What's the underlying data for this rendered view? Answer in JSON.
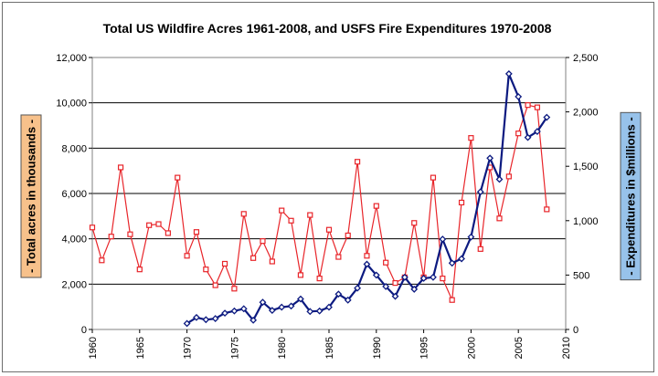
{
  "chart_data": {
    "type": "line",
    "title": "Total US Wildfire Acres 1961-2008, and USFS Fire Expenditures 1970-2008",
    "ylabel_left": "- Total acres in thousands -",
    "ylabel_right": "- Expenditures in $millions -",
    "xlim": [
      1960,
      2010
    ],
    "ylim_left": [
      0,
      12000
    ],
    "ylim_right": [
      0,
      2500
    ],
    "x_ticks": [
      "1960",
      "1965",
      "1970",
      "1975",
      "1980",
      "1985",
      "1990",
      "1995",
      "2000",
      "2005",
      "2010"
    ],
    "y_ticks_left": [
      "0",
      "2,000",
      "4,000",
      "6,000",
      "8,000",
      "10,000",
      "12,000"
    ],
    "y_ticks_right": [
      "0",
      "500",
      "1,000",
      "1,500",
      "2,000",
      "2,500"
    ],
    "grid": "horizontal",
    "colors": {
      "acres": "#e8252a",
      "expenditures": "#0c1a80",
      "left_label_box": "#f7c18b",
      "right_label_box": "#97c2ea"
    },
    "series": [
      {
        "key": "acres",
        "axis": "left",
        "marker": "square",
        "x": [
          1960,
          1961,
          1962,
          1963,
          1964,
          1965,
          1966,
          1967,
          1968,
          1969,
          1970,
          1971,
          1972,
          1973,
          1974,
          1975,
          1976,
          1977,
          1978,
          1979,
          1980,
          1981,
          1982,
          1983,
          1984,
          1985,
          1986,
          1987,
          1988,
          1989,
          1990,
          1991,
          1992,
          1993,
          1994,
          1995,
          1996,
          1997,
          1998,
          1999,
          2000,
          2001,
          2002,
          2003,
          2004,
          2005,
          2006,
          2007,
          2008
        ],
        "values": [
          4500,
          3050,
          4100,
          7150,
          4200,
          2650,
          4600,
          4650,
          4250,
          6700,
          3250,
          4300,
          2650,
          1950,
          2900,
          1800,
          5100,
          3150,
          3900,
          3000,
          5250,
          4800,
          2400,
          5050,
          2250,
          4400,
          3200,
          4150,
          7400,
          3250,
          5450,
          2950,
          2050,
          2300,
          4700,
          2300,
          6700,
          2250,
          1300,
          5600,
          8450,
          3550,
          7150,
          4900,
          6750,
          8650,
          9900,
          9800,
          5300
        ]
      },
      {
        "key": "expenditures",
        "axis": "right",
        "marker": "diamond",
        "x": [
          1970,
          1971,
          1972,
          1973,
          1974,
          1975,
          1976,
          1977,
          1978,
          1979,
          1980,
          1981,
          1982,
          1983,
          1984,
          1985,
          1986,
          1987,
          1988,
          1989,
          1990,
          1991,
          1992,
          1993,
          1994,
          1995,
          1996,
          1997,
          1998,
          1999,
          2000,
          2001,
          2002,
          2003,
          2004,
          2005,
          2006,
          2007,
          2008
        ],
        "values": [
          55,
          110,
          90,
          100,
          150,
          170,
          190,
          85,
          250,
          175,
          205,
          215,
          280,
          165,
          170,
          205,
          325,
          270,
          380,
          600,
          500,
          395,
          305,
          480,
          370,
          470,
          480,
          830,
          610,
          650,
          850,
          1265,
          1575,
          1380,
          2350,
          2140,
          1765,
          1820,
          1950
        ]
      }
    ]
  }
}
